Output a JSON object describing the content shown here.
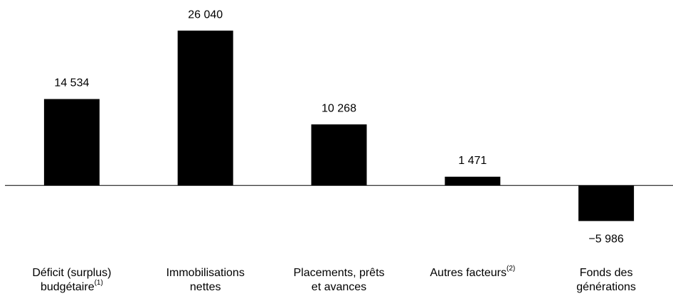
{
  "chart_data": {
    "type": "bar",
    "categories": [
      "Déficit (surplus) budgétaire",
      "Immobilisations nettes",
      "Placements, prêts et avances",
      "Autres facteurs",
      "Fonds des générations"
    ],
    "category_notes": [
      "(1)",
      null,
      null,
      "(2)",
      null
    ],
    "values": [
      14534,
      26040,
      10268,
      1471,
      -5986
    ],
    "value_labels": [
      "14 534",
      "26 040",
      "10 268",
      "1 471",
      "−5 986"
    ],
    "color": "#000000",
    "ylim": [
      -10000,
      30000
    ]
  }
}
